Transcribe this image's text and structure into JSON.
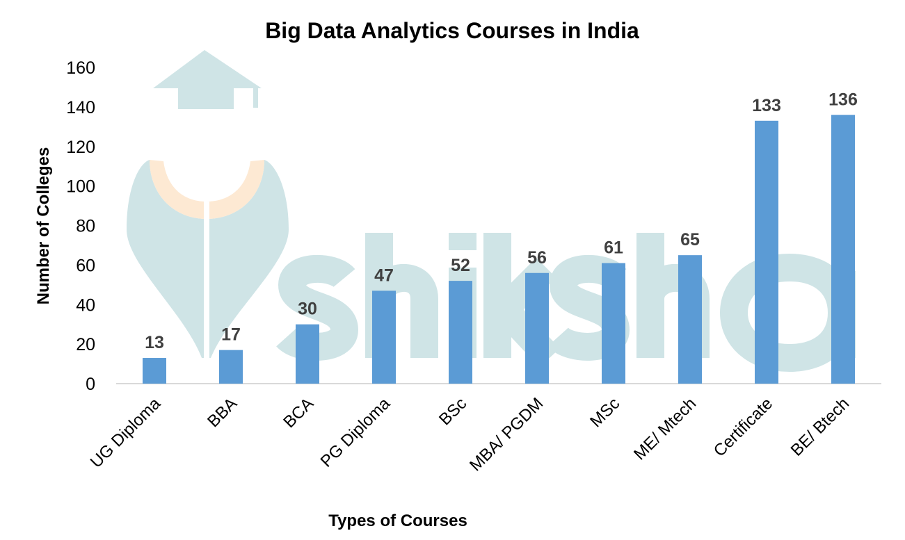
{
  "chart_data": {
    "type": "bar",
    "title": "Big Data Analytics Courses in India",
    "xlabel": "Types of Courses",
    "ylabel": "Number of Colleges",
    "categories": [
      "UG Diploma",
      "BBA",
      "BCA",
      "PG Diploma",
      "BSc",
      "MBA/ PGDM",
      "MSc",
      "ME/ Mtech",
      "Certificate",
      "BE/ Btech"
    ],
    "values": [
      13,
      17,
      30,
      47,
      52,
      56,
      61,
      65,
      133,
      136
    ],
    "ylim": [
      0,
      160
    ],
    "yticks": [
      0,
      20,
      40,
      60,
      80,
      100,
      120,
      140,
      160
    ],
    "grid": false,
    "data_labels": true,
    "legend": "none",
    "bar_color": "#5b9bd5",
    "label_color": "#404040"
  },
  "watermark": {
    "text": "shiksha",
    "color": "#cfe4e6",
    "accent_color": "#fde9d3"
  }
}
